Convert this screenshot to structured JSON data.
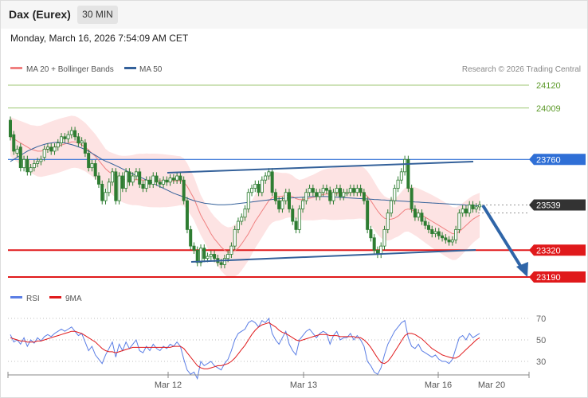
{
  "header": {
    "title": "Dax (Eurex)",
    "timeframe": "30 MIN",
    "datetime": "Monday, March 16, 2026 7:54:09 AM CET"
  },
  "legend": {
    "ma20_bb": "MA 20 + Bollinger Bands",
    "ma50": "MA 50",
    "rsi": "RSI",
    "ma9": "9MA",
    "credit": "Research © 2026 Trading Central"
  },
  "colors": {
    "bollinger_fill": "#fde3e3",
    "ma20": "#f08080",
    "ma50": "#34619a",
    "candle": "#2e7d32",
    "support": "#e0191b",
    "resistance": "#2f6fd6",
    "target_line": "#7cb342",
    "arrow": "#2f65a8",
    "current_price": "#333333",
    "rsi": "#5b7ee5",
    "rsi_ma": "#e0191b"
  },
  "chart_data": [
    {
      "type": "candlestick",
      "title": "Dax (Eurex)",
      "timeframe": "30 MIN",
      "x_ticks": [
        "Mar 12",
        "Mar 13",
        "Mar 16",
        "Mar 20"
      ],
      "y_ticks": [
        24120,
        24009,
        23760,
        23539,
        23320,
        23190
      ],
      "ylim": [
        23150,
        24160
      ],
      "price_levels": [
        {
          "value": 24120,
          "label": "24120",
          "kind": "target"
        },
        {
          "value": 24009,
          "label": "24009",
          "kind": "target"
        },
        {
          "value": 23760,
          "label": "23760",
          "kind": "resistance"
        },
        {
          "value": 23539,
          "label": "23539",
          "kind": "current"
        },
        {
          "value": 23320,
          "label": "23320",
          "kind": "support"
        },
        {
          "value": 23190,
          "label": "23190",
          "kind": "support"
        }
      ],
      "close": [
        23870,
        23800,
        23810,
        23720,
        23760,
        23700,
        23720,
        23740,
        23750,
        23760,
        23810,
        23820,
        23800,
        23820,
        23840,
        23870,
        23860,
        23880,
        23900,
        23870,
        23840,
        23850,
        23790,
        23720,
        23740,
        23680,
        23640,
        23560,
        23600,
        23650,
        23700,
        23560,
        23680,
        23620,
        23700,
        23650,
        23680,
        23700,
        23640,
        23620,
        23660,
        23640,
        23680,
        23650,
        23640,
        23660,
        23650,
        23670,
        23660,
        23680,
        23660,
        23560,
        23420,
        23340,
        23320,
        23260,
        23330,
        23280,
        23290,
        23300,
        23280,
        23260,
        23250,
        23280,
        23300,
        23340,
        23420,
        23460,
        23480,
        23520,
        23600,
        23620,
        23640,
        23600,
        23660,
        23680,
        23700,
        23600,
        23560,
        23520,
        23560,
        23600,
        23520,
        23460,
        23420,
        23520,
        23560,
        23600,
        23620,
        23600,
        23580,
        23600,
        23620,
        23610,
        23560,
        23600,
        23620,
        23580,
        23600,
        23600,
        23620,
        23600,
        23620,
        23600,
        23560,
        23420,
        23380,
        23320,
        23300,
        23340,
        23420,
        23500,
        23560,
        23620,
        23660,
        23700,
        23760,
        23620,
        23520,
        23480,
        23500,
        23460,
        23440,
        23420,
        23400,
        23410,
        23390,
        23380,
        23370,
        23360,
        23370,
        23420,
        23500,
        23520,
        23500,
        23540,
        23520,
        23530,
        23540
      ],
      "open": [
        23950,
        23880,
        23790,
        23820,
        23720,
        23760,
        23700,
        23720,
        23740,
        23750,
        23770,
        23810,
        23820,
        23800,
        23820,
        23840,
        23870,
        23860,
        23880,
        23900,
        23870,
        23840,
        23840,
        23790,
        23720,
        23740,
        23680,
        23640,
        23560,
        23600,
        23650,
        23700,
        23560,
        23680,
        23620,
        23700,
        23650,
        23680,
        23700,
        23640,
        23620,
        23660,
        23640,
        23680,
        23650,
        23640,
        23660,
        23650,
        23670,
        23660,
        23680,
        23660,
        23560,
        23420,
        23340,
        23320,
        23260,
        23330,
        23280,
        23290,
        23300,
        23280,
        23260,
        23250,
        23280,
        23300,
        23340,
        23420,
        23460,
        23480,
        23520,
        23600,
        23620,
        23640,
        23600,
        23660,
        23680,
        23700,
        23600,
        23560,
        23520,
        23560,
        23600,
        23520,
        23460,
        23420,
        23520,
        23560,
        23600,
        23620,
        23600,
        23580,
        23600,
        23620,
        23610,
        23560,
        23600,
        23620,
        23580,
        23600,
        23600,
        23620,
        23600,
        23620,
        23600,
        23560,
        23420,
        23380,
        23320,
        23300,
        23340,
        23420,
        23500,
        23560,
        23620,
        23660,
        23700,
        23760,
        23620,
        23520,
        23480,
        23500,
        23460,
        23440,
        23420,
        23400,
        23410,
        23390,
        23380,
        23370,
        23360,
        23370,
        23420,
        23500,
        23520,
        23500,
        23540,
        23520,
        23530
      ],
      "ma20": [
        23870,
        23860,
        23850,
        23840,
        23830,
        23820,
        23810,
        23805,
        23800,
        23800,
        23805,
        23810,
        23815,
        23820,
        23825,
        23830,
        23835,
        23840,
        23845,
        23845,
        23840,
        23830,
        23820,
        23805,
        23790,
        23775,
        23755,
        23735,
        23715,
        23700,
        23690,
        23680,
        23670,
        23665,
        23662,
        23660,
        23660,
        23662,
        23662,
        23660,
        23660,
        23658,
        23658,
        23658,
        23657,
        23657,
        23656,
        23656,
        23656,
        23656,
        23657,
        23650,
        23630,
        23600,
        23570,
        23530,
        23490,
        23460,
        23430,
        23400,
        23375,
        23355,
        23335,
        23320,
        23310,
        23310,
        23318,
        23330,
        23350,
        23375,
        23400,
        23430,
        23460,
        23485,
        23510,
        23535,
        23560,
        23575,
        23580,
        23580,
        23582,
        23585,
        23585,
        23580,
        23570,
        23565,
        23565,
        23568,
        23572,
        23575,
        23580,
        23585,
        23590,
        23592,
        23592,
        23593,
        23595,
        23597,
        23598,
        23600,
        23600,
        23600,
        23601,
        23600,
        23595,
        23580,
        23560,
        23535,
        23510,
        23490,
        23475,
        23470,
        23470,
        23475,
        23485,
        23500,
        23515,
        23520,
        23515,
        23508,
        23500,
        23490,
        23480,
        23470,
        23460,
        23450,
        23440,
        23430,
        23420,
        23410,
        23400,
        23400,
        23410,
        23425,
        23440,
        23455,
        23470,
        23480,
        23490
      ],
      "ma50": [
        23750,
        23760,
        23770,
        23780,
        23790,
        23800,
        23808,
        23815,
        23822,
        23828,
        23833,
        23837,
        23840,
        23842,
        23843,
        23842,
        23840,
        23836,
        23832,
        23827,
        23821,
        23815,
        23808,
        23800,
        23790,
        23780,
        23770,
        23760,
        23752,
        23745,
        23738,
        23730,
        23722,
        23714,
        23706,
        23698,
        23690,
        23682,
        23675,
        23668,
        23660,
        23652,
        23644,
        23636,
        23628,
        23620,
        23612,
        23604,
        23596,
        23590,
        23584,
        23578,
        23572,
        23566,
        23560,
        23556,
        23552,
        23548,
        23546,
        23544,
        23542,
        23540,
        23540,
        23540,
        23541,
        23542,
        23544,
        23546,
        23548,
        23550,
        23552,
        23554,
        23556,
        23558,
        23560,
        23562,
        23564,
        23566,
        23568,
        23570,
        23571,
        23572,
        23573,
        23574,
        23575,
        23576,
        23577,
        23578,
        23579,
        23580,
        23580,
        23580,
        23580,
        23580,
        23579,
        23578,
        23577,
        23576,
        23575,
        23574,
        23573,
        23572,
        23571,
        23570,
        23569,
        23568,
        23567,
        23566,
        23565,
        23564,
        23563,
        23562,
        23561,
        23560,
        23559,
        23558,
        23557,
        23556,
        23555,
        23554,
        23553,
        23552,
        23551,
        23550,
        23549,
        23548,
        23547,
        23546,
        23545,
        23544,
        23543,
        23542,
        23541,
        23540,
        23539,
        23538,
        23537,
        23536,
        23535
      ]
    },
    {
      "type": "line",
      "title": "RSI",
      "y_ticks": [
        70,
        50,
        30
      ],
      "ylim": [
        25,
        75
      ],
      "series": [
        {
          "name": "RSI",
          "values": [
            55,
            48,
            50,
            46,
            52,
            44,
            50,
            47,
            52,
            49,
            53,
            55,
            53,
            56,
            58,
            60,
            58,
            60,
            62,
            58,
            54,
            56,
            48,
            40,
            44,
            36,
            32,
            28,
            36,
            42,
            48,
            34,
            46,
            40,
            48,
            42,
            46,
            50,
            40,
            38,
            44,
            40,
            46,
            42,
            40,
            44,
            42,
            46,
            44,
            48,
            44,
            32,
            22,
            18,
            20,
            14,
            30,
            26,
            28,
            30,
            26,
            24,
            22,
            28,
            32,
            40,
            50,
            56,
            58,
            60,
            66,
            68,
            66,
            62,
            68,
            66,
            70,
            56,
            50,
            46,
            52,
            58,
            46,
            40,
            36,
            50,
            54,
            58,
            60,
            56,
            52,
            56,
            58,
            56,
            46,
            54,
            58,
            50,
            52,
            52,
            56,
            50,
            54,
            50,
            44,
            30,
            26,
            20,
            18,
            24,
            36,
            46,
            52,
            58,
            62,
            66,
            68,
            52,
            44,
            42,
            46,
            40,
            38,
            36,
            34,
            36,
            32,
            30,
            30,
            28,
            32,
            42,
            52,
            54,
            50,
            56,
            52,
            54,
            56
          ]
        },
        {
          "name": "9MA",
          "values": [
            52,
            51,
            50,
            49,
            49,
            48,
            48,
            48,
            49,
            49,
            50,
            51,
            52,
            53,
            54,
            55,
            56,
            57,
            58,
            58,
            57,
            56,
            54,
            52,
            50,
            48,
            45,
            42,
            40,
            39,
            39,
            38,
            39,
            40,
            41,
            42,
            43,
            43,
            43,
            43,
            43,
            43,
            43,
            43,
            43,
            43,
            43,
            43,
            44,
            44,
            44,
            42,
            38,
            34,
            30,
            26,
            24,
            23,
            23,
            24,
            25,
            26,
            26,
            27,
            28,
            30,
            33,
            37,
            41,
            45,
            50,
            55,
            59,
            62,
            64,
            65,
            66,
            64,
            62,
            59,
            57,
            56,
            54,
            52,
            50,
            49,
            50,
            51,
            52,
            53,
            54,
            55,
            55,
            55,
            54,
            54,
            54,
            53,
            53,
            53,
            53,
            53,
            52,
            52,
            50,
            47,
            43,
            38,
            33,
            29,
            28,
            30,
            34,
            39,
            44,
            49,
            54,
            56,
            56,
            55,
            53,
            51,
            48,
            45,
            42,
            40,
            38,
            36,
            35,
            34,
            33,
            33,
            35,
            38,
            41,
            44,
            47,
            50,
            52
          ]
        }
      ]
    }
  ]
}
